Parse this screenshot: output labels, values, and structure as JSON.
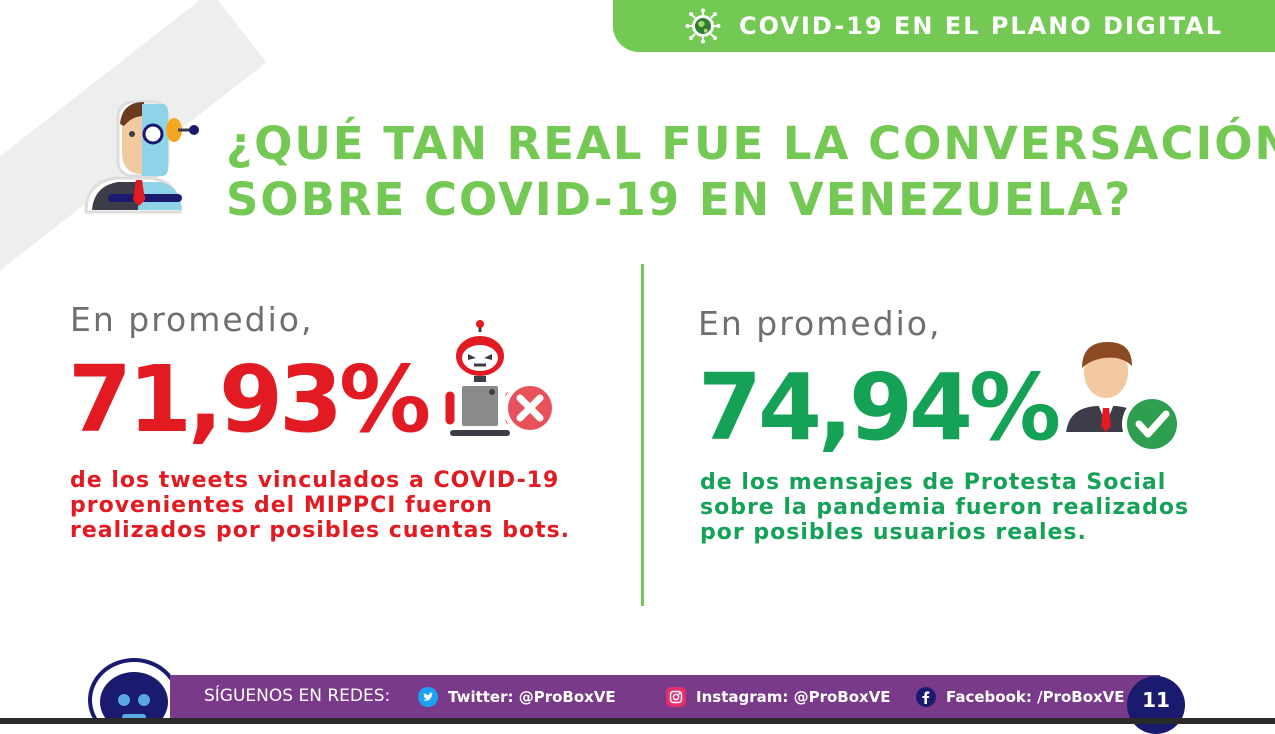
{
  "banner": {
    "title": "COVID-19 EN EL PLANO DIGITAL",
    "icon": "virus-globe-icon",
    "color": "#74c954"
  },
  "heading": {
    "line1": "¿QUÉ TAN REAL FUE LA CONVERSACIÓN",
    "line2": "SOBRE COVID-19 EN VENEZUELA?"
  },
  "left_stat": {
    "lead": "En promedio,",
    "value": "71,93%",
    "desc_lines": [
      "de los tweets vinculados a COVID-19",
      "provenientes del MIPPCI fueron",
      "realizados por posibles cuentas bots."
    ],
    "color": "#e21b22",
    "icon": "bot-cross-icon"
  },
  "right_stat": {
    "lead": "En promedio,",
    "value": "74,94%",
    "desc_lines": [
      "de los mensajes de Protesta Social",
      "sobre la pandemia fueron realizados",
      "por posibles usuarios reales."
    ],
    "color": "#15a257",
    "icon": "user-check-icon"
  },
  "footer": {
    "label": "SÍGUENOS EN REDES:",
    "twitter": "Twitter: @ProBoxVE",
    "instagram": "Instagram: @ProBoxVE",
    "facebook": "Facebook: /ProBoxVE",
    "page": "11",
    "bar_color": "#7a3a8a"
  }
}
